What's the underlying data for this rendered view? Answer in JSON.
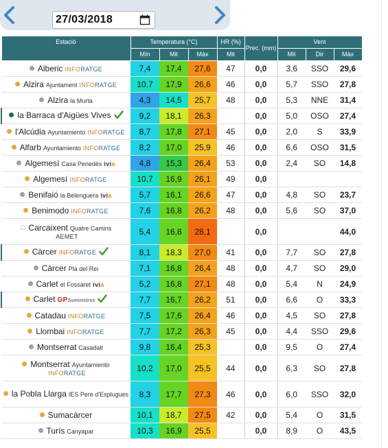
{
  "datebar": {
    "date": "27/03/2018",
    "prev_icon": "chevron-left-icon",
    "next_icon": "chevron-right-icon",
    "calendar_icon": "calendar-icon"
  },
  "header": {
    "estacio": "Estació",
    "temperatura": "Temperatura (°C)",
    "hr": "HR (%)",
    "prec": "Prec. (mm)",
    "vent": "Vent",
    "t_min": "Mín",
    "t_mit": "Mit",
    "t_max": "Màx",
    "hr_mit": "Mit",
    "v_mit": "Mit",
    "v_dir": "Dir",
    "v_max": "Màx"
  },
  "colors": {
    "header_bg": "#2f6e76",
    "dot_orange": "#e3a93a",
    "dot_gray": "#a0a0a0",
    "dot_green": "#1e6b4e",
    "check_green": "#3c9a2c"
  },
  "rows": [
    {
      "name": "Alberic",
      "loc": "",
      "src": "INFORATGE",
      "dot": "gray",
      "tmin": "7,4",
      "tmit": "17,4",
      "tmax": "27,6",
      "hr": "47",
      "prec": "0,0",
      "vmit": "3,6",
      "vdir": "SSO",
      "vmax": "29,6",
      "h": 23
    },
    {
      "name": "Alzira",
      "loc": "Ajuntament",
      "src": "INFORATGE",
      "dot": "orange",
      "tmin": "10,7",
      "tmit": "17,9",
      "tmax": "26,6",
      "hr": "46",
      "prec": "0,0",
      "vmit": "5,7",
      "vdir": "SSO",
      "vmax": "27,8",
      "h": 23
    },
    {
      "name": "Alzira",
      "loc": "la Murta",
      "src": "",
      "dot": "gray",
      "tmin": "4,3",
      "tmit": "14,5",
      "tmax": "25,7",
      "hr": "48",
      "prec": "0,0",
      "vmit": "5,3",
      "vdir": "NNE",
      "vmax": "31,4",
      "h": 23
    },
    {
      "name": "la Barraca d'Aigües Vives",
      "loc": "",
      "src": "",
      "dot": "green",
      "check": true,
      "selected": true,
      "tmin": "9,2",
      "tmit": "18,1",
      "tmax": "26,3",
      "hr": "",
      "prec": "0,0",
      "vmit": "5,0",
      "vdir": "OSO",
      "vmax": "27,4",
      "h": 23
    },
    {
      "name": "l'Alcúdia",
      "loc": "Ayuntamiento",
      "src": "INFORATGE",
      "dot": "orange",
      "tmin": "8,7",
      "tmit": "17,8",
      "tmax": "27,1",
      "hr": "45",
      "prec": "0,0",
      "vmit": "2,0",
      "vdir": "S",
      "vmax": "33,9",
      "h": 23
    },
    {
      "name": "Alfarb",
      "loc": "Ayuntamiento",
      "src": "INFORATGE",
      "dot": "orange",
      "tmin": "8,2",
      "tmit": "17,0",
      "tmax": "25,9",
      "hr": "46",
      "prec": "0,0",
      "vmit": "6,6",
      "vdir": "OSO",
      "vmax": "31,5",
      "h": 23
    },
    {
      "name": "Algemesí",
      "loc": "Casa Penedès",
      "src": "ivia",
      "dot": "gray",
      "tmin": "4,8",
      "tmit": "15,3",
      "tmax": "26,4",
      "hr": "53",
      "prec": "0,0",
      "vmit": "2,4",
      "vdir": "SO",
      "vmax": "14,8",
      "h": 23
    },
    {
      "name": "Algemesí",
      "loc": "",
      "src": "INFORATGE",
      "dot": "orange",
      "tmin": "10,7",
      "tmit": "16,9",
      "tmax": "26,1",
      "hr": "49",
      "prec": "0,0",
      "vmit": "",
      "vdir": "",
      "vmax": "",
      "h": 23
    },
    {
      "name": "Benifaió",
      "loc": "la Belenguera",
      "src": "ivia",
      "dot": "gray",
      "tmin": "5,7",
      "tmit": "16,1",
      "tmax": "26,6",
      "hr": "47",
      "prec": "0,0",
      "vmit": "4,8",
      "vdir": "SO",
      "vmax": "23,7",
      "h": 23
    },
    {
      "name": "Benimodo",
      "loc": "",
      "src": "INFORATGE",
      "dot": "orange",
      "tmin": "7,6",
      "tmit": "16,8",
      "tmax": "26,2",
      "hr": "48",
      "prec": "0,0",
      "vmit": "5,6",
      "vdir": "SO",
      "vmax": "37,0",
      "h": 23
    },
    {
      "name": "Carcaixent",
      "loc": "Quatre Camins",
      "src": "AEMET",
      "dot": "hollow",
      "twoline": true,
      "tmin": "5,4",
      "tmit": "16,8",
      "tmax": "28,1",
      "hr": "",
      "prec": "0,0",
      "vmit": "",
      "vdir": "",
      "vmax": "44,0",
      "h": 38
    },
    {
      "name": "Càrcer",
      "loc": "",
      "src": "INFORATGE",
      "dot": "orange",
      "check": true,
      "selected": true,
      "tmin": "8,1",
      "tmit": "18,3",
      "tmax": "27,0",
      "hr": "41",
      "prec": "0,0",
      "vmit": "7,7",
      "vdir": "SO",
      "vmax": "27,8",
      "h": 23
    },
    {
      "name": "Càrcer",
      "loc": "Pla del Rei",
      "src": "",
      "dot": "gray",
      "tmin": "7,1",
      "tmit": "16,8",
      "tmax": "26,4",
      "hr": "48",
      "prec": "0,0",
      "vmit": "4,7",
      "vdir": "SO",
      "vmax": "29,0",
      "h": 23
    },
    {
      "name": "Carlet",
      "loc": "el Fossaret",
      "src": "ivia",
      "dot": "gray",
      "tmin": "5,2",
      "tmit": "16,8",
      "tmax": "27,1",
      "hr": "48",
      "prec": "0,0",
      "vmit": "5,4",
      "vdir": "N",
      "vmax": "24,9",
      "h": 23
    },
    {
      "name": "Carlet",
      "loc": "",
      "src": "GP",
      "dot": "orange",
      "check": true,
      "selected": true,
      "tmin": "7,7",
      "tmit": "16,7",
      "tmax": "26,2",
      "hr": "51",
      "prec": "0,0",
      "vmit": "6,6",
      "vdir": "O",
      "vmax": "33,3",
      "h": 23
    },
    {
      "name": "Catadau",
      "loc": "",
      "src": "INFORATGE",
      "dot": "orange",
      "tmin": "7,5",
      "tmit": "17,6",
      "tmax": "26,4",
      "hr": "46",
      "prec": "0,0",
      "vmit": "4,5",
      "vdir": "SO",
      "vmax": "27,8",
      "h": 23
    },
    {
      "name": "Llombai",
      "loc": "",
      "src": "INFORATGE",
      "dot": "orange",
      "tmin": "7,7",
      "tmit": "17,2",
      "tmax": "26,3",
      "hr": "45",
      "prec": "0,0",
      "vmit": "4,4",
      "vdir": "SSO",
      "vmax": "29,6",
      "h": 23
    },
    {
      "name": "Montserrat",
      "loc": "Casadalt",
      "src": "",
      "dot": "gray",
      "tmin": "9,8",
      "tmit": "16,4",
      "tmax": "25,3",
      "hr": "",
      "prec": "0,0",
      "vmit": "9,5",
      "vdir": "O",
      "vmax": "27,4",
      "h": 23
    },
    {
      "name": "Montserrat",
      "loc": "Ayuntamiento",
      "src": "INFORATGE",
      "dot": "orange",
      "twoline": true,
      "tmin": "10,2",
      "tmit": "17,0",
      "tmax": "25,5",
      "hr": "44",
      "prec": "0,0",
      "vmit": "6,3",
      "vdir": "SO",
      "vmax": "27,8",
      "h": 38
    },
    {
      "name": "la Pobla Llarga",
      "loc": "IES Pere d'Esplugues",
      "src": "",
      "dot": "orange",
      "twoline": true,
      "tmin": "8,3",
      "tmit": "17,7",
      "tmax": "27,3",
      "hr": "46",
      "prec": "0,0",
      "vmit": "6,0",
      "vdir": "SSO",
      "vmax": "32,0",
      "h": 38
    },
    {
      "name": "Sumacàrcer",
      "loc": "",
      "src": "",
      "dot": "orange",
      "tmin": "10,1",
      "tmit": "18,7",
      "tmax": "27,5",
      "hr": "42",
      "prec": "0,0",
      "vmit": "5,4",
      "vdir": "O",
      "vmax": "31,5",
      "h": 23
    },
    {
      "name": "Turís",
      "loc": "Canyapar",
      "src": "",
      "dot": "gray",
      "tmin": "10,3",
      "tmit": "16,9",
      "tmax": "25,5",
      "hr": "",
      "prec": "0,0",
      "vmit": "8,9",
      "vdir": "O",
      "vmax": "43,5",
      "h": 23
    }
  ]
}
